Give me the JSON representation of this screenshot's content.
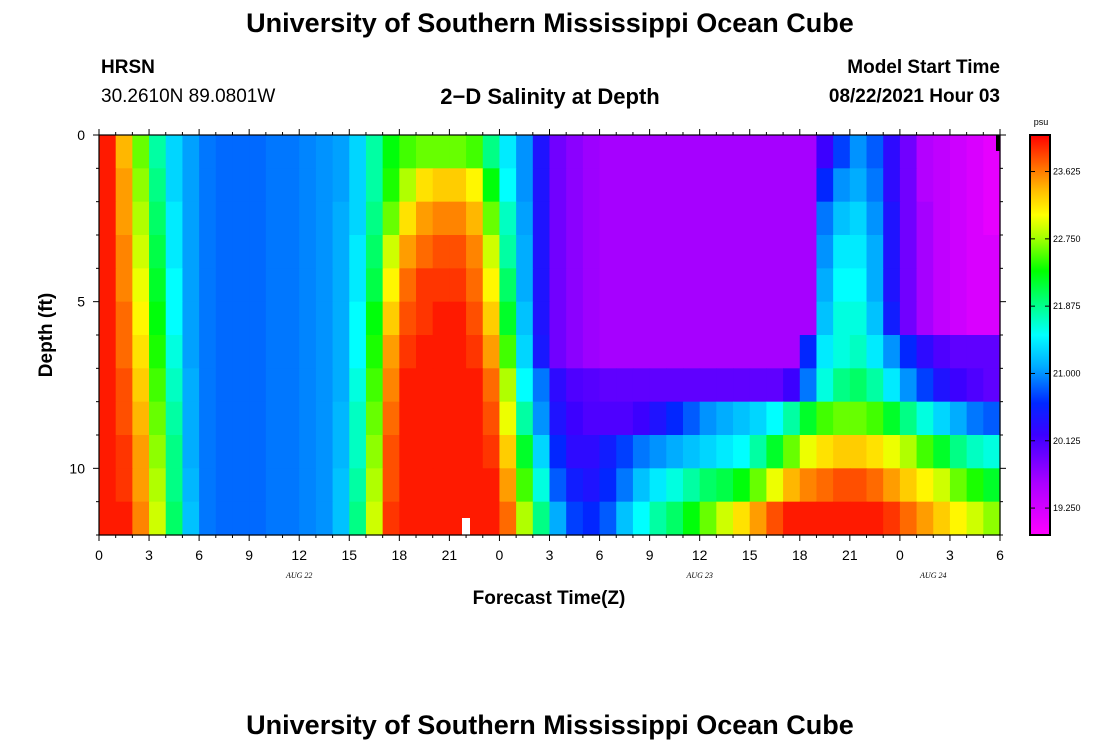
{
  "header": {
    "title": "University of Southern Mississippi Ocean Cube",
    "station": "HRSN",
    "coords": "30.2610N  89.0801W",
    "subtitle": "2−D Salinity at Depth",
    "model_start_label": "Model Start Time",
    "model_start_value": "08/22/2021 Hour 03"
  },
  "footer": {
    "title": "University of Southern Mississippi Ocean Cube"
  },
  "chart_data": {
    "type": "heatmap",
    "title": "2-D Salinity at Depth",
    "xlabel": "Forecast Time(Z)",
    "ylabel": "Depth (ft)",
    "x_range_hours": [
      0,
      54
    ],
    "y_range_ft": [
      0,
      12
    ],
    "x_tick_labels": [
      "0",
      "3",
      "6",
      "9",
      "12",
      "15",
      "18",
      "21",
      "0",
      "3",
      "6",
      "9",
      "12",
      "15",
      "18",
      "21",
      "0",
      "3",
      "6"
    ],
    "y_tick_labels": [
      "0",
      "5",
      "10"
    ],
    "y_tick_values": [
      0,
      5,
      10
    ],
    "day_labels": [
      {
        "text": "AUG  22",
        "hour": 12
      },
      {
        "text": "AUG  23",
        "hour": 36
      },
      {
        "text": "AUG  24",
        "hour": 50
      }
    ],
    "colorbar": {
      "unit": "psu",
      "min": 18.9,
      "max": 24.1,
      "tick_labels": [
        "23.625",
        "22.750",
        "21.875",
        "21.000",
        "20.125",
        "19.250"
      ],
      "tick_values": [
        23.625,
        22.75,
        21.875,
        21.0,
        20.125,
        19.25
      ]
    },
    "grid": {
      "columns": 54,
      "rows": 12,
      "cell_hours": 1,
      "cell_ft": 1
    },
    "salinity_psu": [
      [
        24.0,
        23.4,
        22.6,
        21.8,
        21.3,
        21.05,
        20.9,
        20.85,
        20.85,
        20.85,
        20.9,
        20.9,
        20.95,
        21.0,
        21.05,
        21.3,
        21.8,
        22.3,
        22.5,
        22.6,
        22.6,
        22.6,
        22.5,
        21.9,
        21.4,
        21.0,
        20.4,
        19.9,
        19.75,
        19.65,
        19.6,
        19.6,
        19.6,
        19.6,
        19.6,
        19.6,
        19.6,
        19.6,
        19.6,
        19.6,
        19.6,
        19.6,
        19.6,
        20.2,
        20.7,
        21.0,
        20.8,
        20.3,
        19.9,
        19.5,
        19.4,
        19.3,
        19.2,
        19.1
      ],
      [
        24.0,
        23.5,
        22.7,
        21.9,
        21.3,
        21.05,
        20.9,
        20.85,
        20.85,
        20.85,
        20.9,
        20.9,
        20.95,
        21.0,
        21.05,
        21.3,
        21.8,
        22.4,
        22.8,
        23.2,
        23.3,
        23.3,
        23.1,
        22.3,
        21.5,
        21.0,
        20.4,
        19.9,
        19.75,
        19.65,
        19.6,
        19.6,
        19.6,
        19.6,
        19.6,
        19.6,
        19.6,
        19.6,
        19.6,
        19.6,
        19.6,
        19.6,
        19.6,
        20.6,
        21.0,
        21.1,
        20.9,
        20.3,
        19.9,
        19.5,
        19.4,
        19.3,
        19.2,
        19.1
      ],
      [
        24.0,
        23.5,
        22.8,
        22.0,
        21.4,
        21.05,
        20.9,
        20.85,
        20.85,
        20.85,
        20.9,
        20.9,
        20.95,
        21.0,
        21.1,
        21.3,
        21.9,
        22.6,
        23.2,
        23.5,
        23.6,
        23.6,
        23.4,
        22.6,
        21.7,
        21.05,
        20.4,
        19.9,
        19.75,
        19.65,
        19.6,
        19.6,
        19.6,
        19.6,
        19.6,
        19.6,
        19.6,
        19.6,
        19.6,
        19.6,
        19.6,
        19.6,
        19.6,
        20.9,
        21.2,
        21.3,
        21.0,
        20.4,
        19.9,
        19.6,
        19.4,
        19.3,
        19.2,
        19.1
      ],
      [
        24.0,
        23.6,
        22.9,
        22.1,
        21.4,
        21.05,
        20.9,
        20.85,
        20.85,
        20.85,
        20.9,
        20.9,
        20.95,
        21.0,
        21.1,
        21.4,
        22.0,
        22.9,
        23.5,
        23.7,
        23.8,
        23.8,
        23.6,
        22.9,
        21.8,
        21.1,
        20.4,
        19.9,
        19.75,
        19.65,
        19.6,
        19.6,
        19.6,
        19.6,
        19.6,
        19.6,
        19.6,
        19.6,
        19.6,
        19.6,
        19.6,
        19.6,
        19.6,
        21.0,
        21.4,
        21.4,
        21.1,
        20.4,
        19.9,
        19.6,
        19.4,
        19.3,
        19.2,
        19.2
      ],
      [
        24.0,
        23.6,
        23.0,
        22.2,
        21.5,
        21.05,
        20.9,
        20.85,
        20.85,
        20.85,
        20.9,
        20.9,
        20.95,
        21.0,
        21.1,
        21.4,
        22.1,
        23.1,
        23.7,
        23.9,
        23.9,
        23.9,
        23.7,
        23.1,
        22.0,
        21.1,
        20.4,
        19.9,
        19.75,
        19.65,
        19.6,
        19.6,
        19.6,
        19.6,
        19.6,
        19.6,
        19.6,
        19.6,
        19.6,
        19.6,
        19.6,
        19.6,
        19.6,
        21.1,
        21.5,
        21.5,
        21.1,
        20.4,
        19.9,
        19.6,
        19.4,
        19.3,
        19.2,
        19.2
      ],
      [
        24.0,
        23.7,
        23.1,
        22.3,
        21.5,
        21.05,
        20.9,
        20.85,
        20.85,
        20.85,
        20.9,
        20.9,
        20.95,
        21.0,
        21.1,
        21.5,
        22.3,
        23.3,
        23.8,
        23.9,
        24.0,
        24.0,
        23.8,
        23.3,
        22.2,
        21.2,
        20.4,
        19.9,
        19.75,
        19.65,
        19.6,
        19.6,
        19.6,
        19.6,
        19.6,
        19.6,
        19.6,
        19.6,
        19.6,
        19.6,
        19.6,
        19.6,
        19.6,
        21.2,
        21.6,
        21.6,
        21.2,
        20.5,
        19.9,
        19.6,
        19.4,
        19.3,
        19.2,
        19.2
      ],
      [
        24.0,
        23.7,
        23.2,
        22.4,
        21.6,
        21.05,
        20.9,
        20.85,
        20.85,
        20.85,
        20.9,
        20.9,
        20.95,
        21.0,
        21.1,
        21.5,
        22.4,
        23.5,
        23.9,
        24.0,
        24.0,
        24.0,
        23.9,
        23.5,
        22.5,
        21.3,
        20.45,
        19.9,
        19.75,
        19.65,
        19.6,
        19.6,
        19.6,
        19.6,
        19.6,
        19.6,
        19.6,
        19.6,
        19.6,
        19.6,
        19.6,
        19.6,
        20.6,
        21.4,
        21.6,
        21.7,
        21.4,
        21.0,
        20.6,
        20.3,
        20.1,
        20.0,
        20.0,
        20.0
      ],
      [
        24.0,
        23.8,
        23.3,
        22.5,
        21.7,
        21.1,
        20.9,
        20.85,
        20.85,
        20.85,
        20.9,
        20.9,
        20.95,
        21.0,
        21.1,
        21.6,
        22.5,
        23.6,
        24.0,
        24.0,
        24.0,
        24.0,
        24.0,
        23.7,
        22.8,
        21.5,
        20.9,
        20.3,
        20.1,
        20.05,
        20.0,
        20.0,
        20.0,
        20.0,
        20.0,
        20.0,
        20.0,
        20.0,
        20.0,
        20.0,
        20.0,
        20.2,
        20.9,
        21.6,
        21.9,
        22.0,
        21.8,
        21.4,
        21.0,
        20.7,
        20.4,
        20.2,
        20.1,
        20.0
      ],
      [
        24.0,
        23.8,
        23.4,
        22.6,
        21.8,
        21.1,
        20.9,
        20.85,
        20.85,
        20.85,
        20.9,
        20.9,
        20.95,
        21.0,
        21.15,
        21.7,
        22.6,
        23.7,
        24.0,
        24.0,
        24.0,
        24.0,
        24.0,
        23.8,
        23.0,
        21.8,
        21.0,
        20.4,
        20.2,
        20.1,
        20.1,
        20.1,
        20.2,
        20.4,
        20.6,
        20.8,
        21.0,
        21.1,
        21.2,
        21.3,
        21.5,
        21.8,
        22.2,
        22.5,
        22.6,
        22.6,
        22.5,
        22.2,
        21.9,
        21.6,
        21.3,
        21.1,
        20.9,
        20.8
      ],
      [
        24.0,
        23.9,
        23.5,
        22.7,
        21.9,
        21.1,
        20.9,
        20.85,
        20.85,
        20.85,
        20.9,
        20.9,
        20.95,
        21.0,
        21.15,
        21.7,
        22.7,
        23.8,
        24.0,
        24.0,
        24.0,
        24.0,
        24.0,
        23.9,
        23.3,
        22.2,
        21.3,
        20.6,
        20.3,
        20.3,
        20.5,
        20.7,
        20.9,
        21.0,
        21.1,
        21.2,
        21.3,
        21.4,
        21.5,
        21.8,
        22.2,
        22.6,
        23.0,
        23.2,
        23.3,
        23.3,
        23.2,
        23.0,
        22.8,
        22.5,
        22.2,
        21.9,
        21.7,
        21.6
      ],
      [
        24.0,
        23.9,
        23.5,
        22.8,
        21.9,
        21.15,
        20.9,
        20.85,
        20.85,
        20.85,
        20.9,
        20.9,
        20.95,
        21.0,
        21.2,
        21.8,
        22.8,
        23.8,
        24.0,
        24.0,
        24.0,
        24.0,
        24.0,
        24.0,
        23.5,
        22.5,
        21.6,
        20.8,
        20.5,
        20.4,
        20.6,
        20.9,
        21.2,
        21.4,
        21.6,
        21.8,
        22.0,
        22.1,
        22.3,
        22.6,
        23.0,
        23.4,
        23.6,
        23.7,
        23.8,
        23.8,
        23.7,
        23.5,
        23.3,
        23.1,
        22.9,
        22.6,
        22.4,
        22.2
      ],
      [
        24.0,
        24.0,
        23.6,
        22.9,
        22.0,
        21.2,
        20.9,
        20.85,
        20.85,
        20.85,
        20.9,
        20.9,
        20.95,
        21.0,
        21.2,
        21.9,
        22.9,
        23.9,
        24.0,
        24.0,
        24.0,
        24.0,
        24.0,
        24.0,
        23.7,
        22.8,
        21.9,
        21.1,
        20.7,
        20.6,
        20.8,
        21.2,
        21.5,
        21.8,
        22.0,
        22.3,
        22.6,
        22.9,
        23.2,
        23.5,
        23.8,
        24.0,
        24.0,
        24.0,
        24.0,
        24.0,
        24.0,
        23.9,
        23.7,
        23.5,
        23.3,
        23.1,
        22.9,
        22.7
      ]
    ]
  }
}
